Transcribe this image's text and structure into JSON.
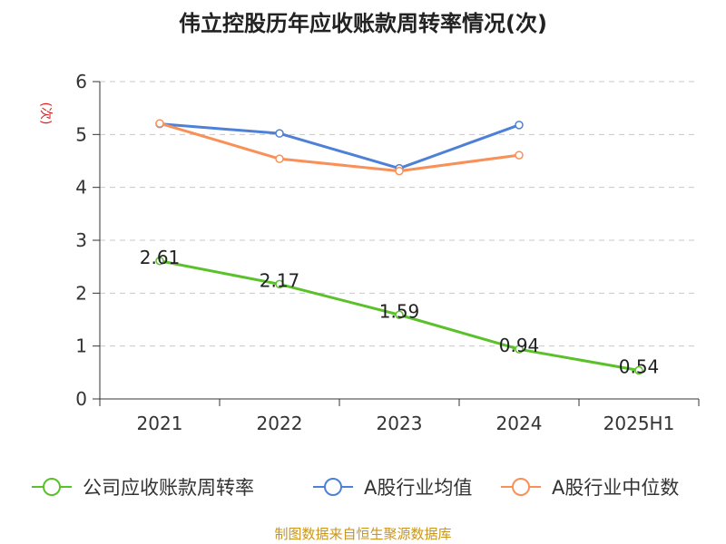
{
  "chart_data": {
    "type": "line",
    "title": "伟立控股历年应收账款周转率情况(次)",
    "ylabel": "(次)",
    "xlabel": "",
    "categories": [
      "2021",
      "2022",
      "2023",
      "2024",
      "2025H1"
    ],
    "ylim": [
      0,
      6
    ],
    "yticks": [
      0,
      1,
      2,
      3,
      4,
      5,
      6
    ],
    "grid": true,
    "legend_position": "bottom",
    "series": [
      {
        "name": "公司应收账款周转率",
        "color": "#5ac12a",
        "values": [
          2.61,
          2.17,
          1.59,
          0.94,
          0.54
        ],
        "labels": [
          "2.61",
          "2.17",
          "1.59",
          "0.94",
          "0.54"
        ],
        "show_labels": true
      },
      {
        "name": "A股行业均值",
        "color": "#4d80d6",
        "values": [
          5.2,
          5.02,
          4.36,
          5.18,
          null
        ],
        "show_labels": false
      },
      {
        "name": "A股行业中位数",
        "color": "#f89058",
        "values": [
          5.21,
          4.54,
          4.31,
          4.61,
          null
        ],
        "show_labels": false
      }
    ]
  },
  "source_text": "制图数据来自恒生聚源数据库"
}
